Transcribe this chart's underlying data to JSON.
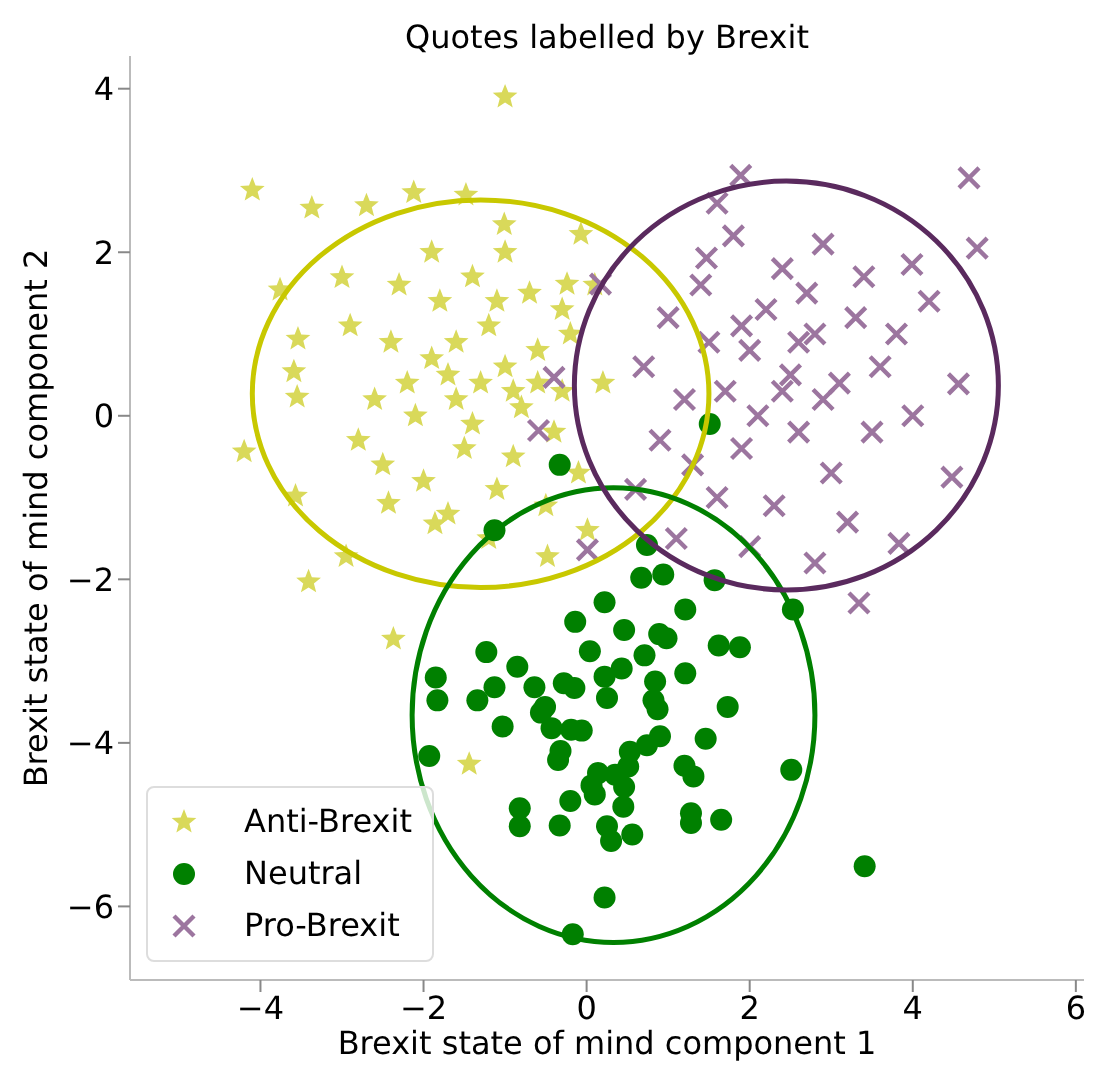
{
  "chart_data": {
    "type": "scatter",
    "title": "Quotes labelled by Brexit",
    "xlabel": "Brexit state of mind component 1",
    "ylabel": "Brexit state of mind component 2",
    "xlim": [
      -5.6,
      6.1
    ],
    "ylim": [
      -6.9,
      4.4
    ],
    "xticks": [
      {
        "value": -4,
        "label": "−4"
      },
      {
        "value": -2,
        "label": "−2"
      },
      0,
      2,
      4,
      6
    ],
    "yticks": [
      {
        "value": -6,
        "label": "−6"
      },
      {
        "value": -4,
        "label": "−4"
      },
      {
        "value": -2,
        "label": "−2"
      },
      0,
      2,
      4
    ],
    "grid": false,
    "legend": "bottom left",
    "series": [
      {
        "name": "Anti-Brexit",
        "type": "scatter",
        "marker": "star",
        "color": "#d9d95a",
        "x": [
          -1.0,
          -4.1,
          -3.37,
          -2.7,
          -2.12,
          -1.48,
          -1.01,
          -3.76,
          -4.2,
          -3.54,
          -3.59,
          -3.55,
          -3.57,
          -2.95,
          -3.41,
          -2.43,
          -1.86,
          -0.48,
          0.01,
          -0.07,
          -0.24,
          -3.0,
          -1.44,
          -2.37,
          -1.3,
          -1.0,
          -1.6,
          -0.8,
          -1.9,
          -1.2,
          -0.6,
          -2.1,
          -1.5,
          -0.9,
          -0.3,
          -2.4,
          -1.8,
          -0.7,
          -1.1,
          -2.0,
          -0.4,
          -2.6,
          -1.4,
          -0.2,
          -2.3,
          -1.7,
          -0.5,
          -2.8,
          -1.0,
          -1.9,
          0.2,
          -2.9,
          -1.2,
          -0.1,
          -1.6,
          -0.9,
          -1.4,
          -2.2,
          -0.6,
          -1.1,
          -1.7,
          -0.3,
          -2.5,
          0.1
        ],
        "values": [
          3.9,
          2.76,
          2.54,
          2.57,
          2.73,
          2.7,
          2.34,
          1.54,
          -0.44,
          0.94,
          0.54,
          0.23,
          -0.98,
          -1.72,
          -2.03,
          -1.07,
          -1.32,
          -1.72,
          -1.4,
          2.22,
          1.61,
          1.69,
          -4.26,
          -2.73,
          0.4,
          0.6,
          0.2,
          0.1,
          0.7,
          1.1,
          0.8,
          0.0,
          -0.4,
          -0.5,
          0.3,
          0.9,
          1.4,
          1.5,
          -0.9,
          -0.8,
          -0.2,
          0.2,
          1.7,
          1.0,
          1.6,
          -1.2,
          -1.1,
          -0.3,
          2.0,
          2.0,
          0.4,
          1.1,
          -1.5,
          -0.7,
          0.9,
          0.3,
          -0.1,
          0.4,
          0.4,
          1.4,
          0.5,
          1.3,
          -0.6,
          1.6
        ]
      },
      {
        "name": "Neutral",
        "type": "scatter",
        "marker": "circle",
        "color": "#008000",
        "x": [
          -0.33,
          -1.13,
          0.74,
          0.67,
          0.94,
          1.57,
          2.53,
          0.22,
          1.21,
          -0.14,
          0.46,
          0.89,
          0.98,
          1.62,
          1.88,
          -1.23,
          0.04,
          0.71,
          -0.85,
          0.43,
          0.22,
          -1.85,
          1.21,
          0.84,
          -1.13,
          -0.64,
          -0.28,
          -0.15,
          -1.83,
          -1.34,
          0.25,
          0.82,
          -0.51,
          0.87,
          1.73,
          -0.56,
          -1.03,
          -0.43,
          -0.19,
          -0.06,
          0.9,
          0.74,
          1.46,
          -0.32,
          0.53,
          -1.93,
          -0.35,
          0.51,
          1.2,
          2.51,
          0.14,
          0.35,
          1.31,
          0.06,
          0.46,
          -0.2,
          0.1,
          0.45,
          -0.82,
          -0.82,
          -0.33,
          1.28,
          1.28,
          1.65,
          0.25,
          0.3,
          0.56,
          3.41,
          0.22,
          -0.17,
          1.51
        ],
        "values": [
          -0.6,
          -1.4,
          -1.58,
          -1.98,
          -1.94,
          -2.01,
          -2.37,
          -2.28,
          -2.37,
          -2.52,
          -2.62,
          -2.67,
          -2.72,
          -2.81,
          -2.83,
          -2.89,
          -2.88,
          -2.93,
          -3.07,
          -3.09,
          -3.19,
          -3.2,
          -3.15,
          -3.25,
          -3.32,
          -3.32,
          -3.27,
          -3.33,
          -3.48,
          -3.48,
          -3.45,
          -3.48,
          -3.56,
          -3.59,
          -3.56,
          -3.63,
          -3.8,
          -3.82,
          -3.84,
          -3.85,
          -3.92,
          -4.03,
          -3.95,
          -4.1,
          -4.11,
          -4.16,
          -4.21,
          -4.29,
          -4.28,
          -4.33,
          -4.37,
          -4.39,
          -4.41,
          -4.52,
          -4.54,
          -4.71,
          -4.63,
          -4.78,
          -4.8,
          -5.02,
          -5.01,
          -4.86,
          -4.98,
          -4.94,
          -5.02,
          -5.2,
          -5.12,
          -5.51,
          -5.89,
          -6.34,
          -0.1
        ]
      },
      {
        "name": "Pro-Brexit",
        "type": "scatter",
        "marker": "cross",
        "color": "#9c759f",
        "x": [
          1.89,
          4.69,
          4.79,
          3.34,
          4.56,
          4.48,
          3.83,
          -0.4,
          -0.59,
          0.01,
          1.47,
          3.99,
          0.17,
          2.0,
          2.5,
          1.7,
          2.8,
          2.2,
          1.5,
          3.1,
          2.6,
          1.9,
          3.3,
          1.2,
          2.4,
          3.0,
          1.6,
          2.1,
          3.6,
          1.0,
          2.7,
          0.9,
          3.5,
          2.3,
          1.4,
          3.8,
          2.9,
          1.8,
          0.7,
          4.0,
          2.0,
          3.2,
          1.3,
          2.6,
          2.9,
          1.9,
          2.4,
          3.4,
          0.6,
          1.1,
          4.2,
          2.8,
          1.6
        ],
        "values": [
          2.94,
          2.91,
          2.05,
          -2.29,
          0.39,
          -0.75,
          -1.56,
          0.47,
          -0.18,
          -1.64,
          1.93,
          1.85,
          1.61,
          0.8,
          0.5,
          0.3,
          1.0,
          1.3,
          0.9,
          0.4,
          -0.2,
          -0.4,
          1.2,
          0.2,
          1.8,
          -0.7,
          -1.0,
          0.0,
          0.6,
          1.2,
          1.5,
          -0.3,
          -0.2,
          -1.1,
          1.6,
          1.0,
          2.1,
          2.2,
          0.6,
          0.0,
          -1.6,
          -1.3,
          -0.6,
          0.9,
          0.2,
          1.1,
          0.3,
          1.7,
          -0.9,
          -1.5,
          1.4,
          -1.8,
          2.6
        ]
      }
    ]
  }
}
